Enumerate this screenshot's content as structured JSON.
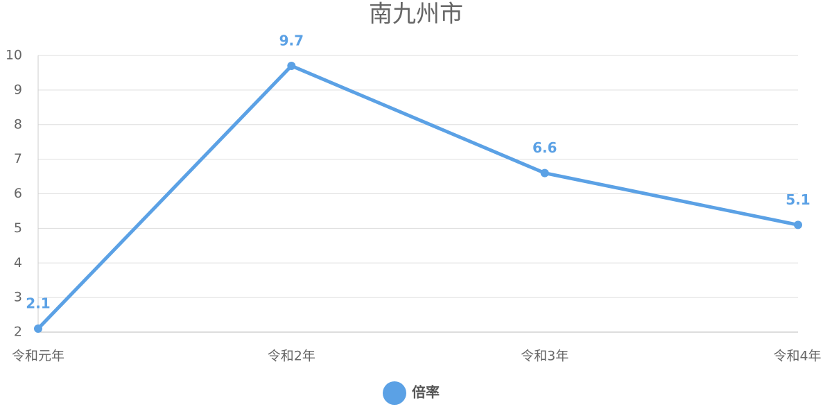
{
  "chart_data": {
    "type": "line",
    "title": "南九州市",
    "categories": [
      "令和元年",
      "令和2年",
      "令和3年",
      "令和4年"
    ],
    "series": [
      {
        "name": "倍率",
        "color": "#5ba1e5",
        "values": [
          2.1,
          9.7,
          6.6,
          5.1
        ]
      }
    ],
    "ylim": [
      2,
      10
    ],
    "yticks": [
      2,
      3,
      4,
      5,
      6,
      7,
      8,
      9,
      10
    ],
    "grid": true,
    "legend": "bottom",
    "data_labels": true
  }
}
